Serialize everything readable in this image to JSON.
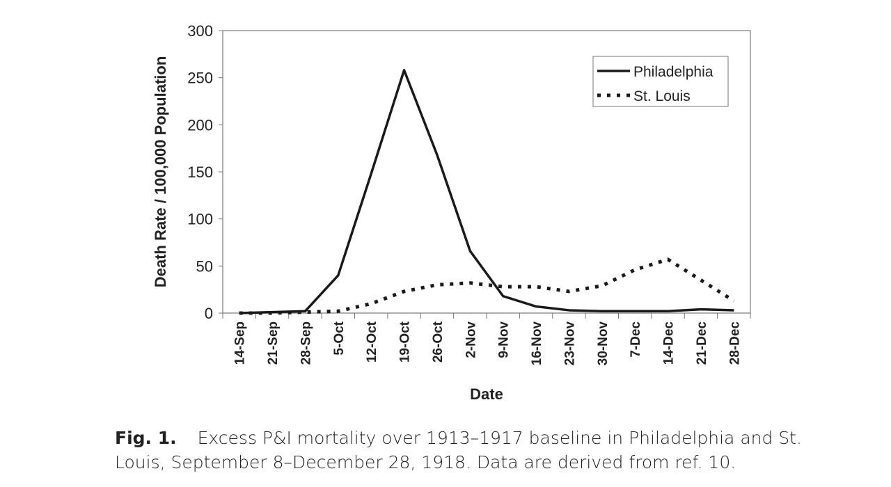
{
  "chart_data": {
    "type": "line",
    "xlabel": "Date",
    "ylabel": "Death Rate / 100,000 Population",
    "categories": [
      "14-Sep",
      "21-Sep",
      "28-Sep",
      "5-Oct",
      "12-Oct",
      "19-Oct",
      "26-Oct",
      "2-Nov",
      "9-Nov",
      "16-Nov",
      "23-Nov",
      "30-Nov",
      "7-Dec",
      "14-Dec",
      "21-Dec",
      "28-Dec"
    ],
    "ylim": [
      0,
      300
    ],
    "yticks": [
      0,
      50,
      100,
      150,
      200,
      250,
      300
    ],
    "grid": false,
    "legend_position": "top-right",
    "series": [
      {
        "name": "Philadelphia",
        "style": "solid",
        "values": [
          0,
          1,
          2,
          40,
          148,
          258,
          168,
          66,
          18,
          7,
          3,
          2,
          2,
          2,
          4,
          3
        ]
      },
      {
        "name": "St. Louis",
        "style": "dotted",
        "values": [
          0,
          0,
          1,
          2,
          10,
          23,
          30,
          32,
          28,
          28,
          23,
          29,
          46,
          57,
          35,
          13
        ]
      }
    ]
  },
  "caption": {
    "label": "Fig. 1.",
    "text": "Excess P&I mortality over 1913–1917 baseline in Philadelphia and St. Louis, September 8–December 28, 1918. Data are derived from ref. 10."
  }
}
